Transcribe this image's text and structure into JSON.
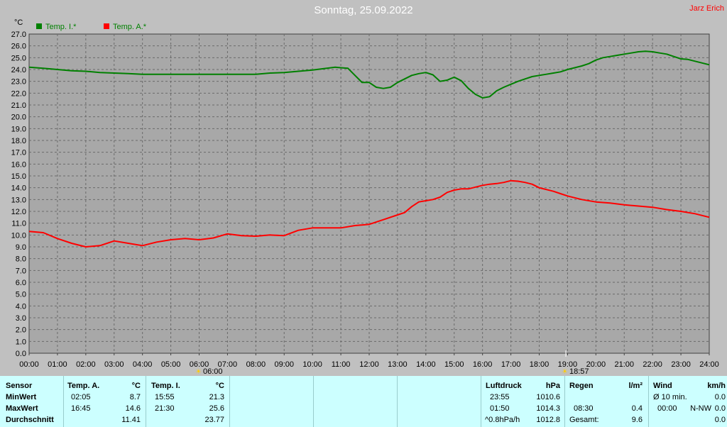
{
  "title": "Sonntag, 25.09.2022",
  "author": "Jarz Erich",
  "chart_data": {
    "type": "line",
    "ylabel": "°C",
    "ylim": [
      0,
      27
    ],
    "yticks": [
      "0.0",
      "1.0",
      "2.0",
      "3.0",
      "4.0",
      "5.0",
      "6.0",
      "7.0",
      "8.0",
      "9.0",
      "10.0",
      "11.0",
      "12.0",
      "13.0",
      "14.0",
      "15.0",
      "16.0",
      "17.0",
      "18.0",
      "19.0",
      "20.0",
      "21.0",
      "22.0",
      "23.0",
      "24.0",
      "25.0",
      "26.0",
      "27.0"
    ],
    "xlim": [
      0,
      24
    ],
    "xticks": [
      "00:00",
      "01:00",
      "02:00",
      "03:00",
      "04:00",
      "05:00",
      "06:00",
      "07:00",
      "08:00",
      "09:00",
      "10:00",
      "11:00",
      "12:00",
      "13:00",
      "14:00",
      "15:00",
      "16:00",
      "17:00",
      "18:00",
      "19:00",
      "20:00",
      "21:00",
      "22:00",
      "23:00",
      "24:00"
    ],
    "grid": true,
    "legend_position": "top-left",
    "sunrise_label": "06:00",
    "sunset_label": "18:57",
    "series": [
      {
        "name": "Temp. I.*",
        "color": "#008000",
        "x": [
          0,
          0.5,
          1,
          1.5,
          2,
          2.5,
          3,
          3.5,
          4,
          4.5,
          5,
          5.5,
          6,
          6.5,
          7,
          7.5,
          8,
          8.5,
          9,
          9.5,
          10,
          10.5,
          10.8,
          11,
          11.25,
          11.5,
          11.75,
          12,
          12.25,
          12.5,
          12.75,
          13,
          13.25,
          13.5,
          13.75,
          14,
          14.25,
          14.5,
          14.75,
          15,
          15.25,
          15.5,
          15.75,
          16,
          16.25,
          16.5,
          16.75,
          17,
          17.25,
          17.5,
          17.75,
          18,
          18.25,
          18.5,
          18.75,
          19,
          19.25,
          19.5,
          19.75,
          20,
          20.25,
          20.5,
          20.75,
          21,
          21.25,
          21.5,
          21.75,
          22,
          22.25,
          22.5,
          22.75,
          23,
          23.25,
          23.5,
          23.75,
          24
        ],
        "y": [
          24.2,
          24.1,
          24.0,
          23.9,
          23.85,
          23.75,
          23.7,
          23.65,
          23.6,
          23.6,
          23.6,
          23.6,
          23.6,
          23.6,
          23.6,
          23.6,
          23.6,
          23.7,
          23.75,
          23.85,
          23.95,
          24.1,
          24.2,
          24.15,
          24.1,
          23.5,
          22.9,
          22.9,
          22.5,
          22.4,
          22.5,
          22.9,
          23.2,
          23.5,
          23.65,
          23.75,
          23.55,
          23.0,
          23.1,
          23.35,
          23.05,
          22.4,
          21.9,
          21.6,
          21.7,
          22.2,
          22.5,
          22.75,
          23.0,
          23.2,
          23.4,
          23.5,
          23.6,
          23.7,
          23.8,
          24.0,
          24.15,
          24.3,
          24.5,
          24.8,
          25.0,
          25.1,
          25.2,
          25.3,
          25.4,
          25.5,
          25.55,
          25.5,
          25.4,
          25.3,
          25.1,
          24.9,
          24.85,
          24.7,
          24.55,
          24.4
        ]
      },
      {
        "name": "Temp. A.*",
        "color": "#ff0000",
        "x": [
          0,
          0.5,
          1,
          1.5,
          2,
          2.5,
          3,
          3.5,
          4,
          4.5,
          5,
          5.5,
          6,
          6.5,
          7,
          7.5,
          8,
          8.5,
          9,
          9.5,
          10,
          10.5,
          11,
          11.5,
          12,
          12.5,
          13,
          13.25,
          13.5,
          13.75,
          14,
          14.25,
          14.5,
          14.75,
          15,
          15.25,
          15.5,
          15.75,
          16,
          16.25,
          16.5,
          16.75,
          17,
          17.25,
          17.5,
          17.75,
          18,
          18.25,
          18.5,
          18.75,
          19,
          19.5,
          20,
          20.5,
          21,
          21.5,
          22,
          22.5,
          23,
          23.5,
          24
        ],
        "y": [
          10.3,
          10.2,
          9.7,
          9.3,
          9.0,
          9.1,
          9.5,
          9.3,
          9.1,
          9.4,
          9.6,
          9.7,
          9.6,
          9.75,
          10.1,
          9.95,
          9.9,
          10.0,
          9.95,
          10.4,
          10.6,
          10.6,
          10.6,
          10.8,
          10.9,
          11.3,
          11.7,
          11.9,
          12.4,
          12.8,
          12.9,
          13.0,
          13.2,
          13.6,
          13.8,
          13.9,
          13.9,
          14.05,
          14.2,
          14.3,
          14.35,
          14.45,
          14.6,
          14.55,
          14.45,
          14.3,
          14.0,
          13.85,
          13.7,
          13.5,
          13.3,
          13.0,
          12.8,
          12.7,
          12.55,
          12.45,
          12.35,
          12.15,
          12.0,
          11.8,
          11.5
        ]
      }
    ]
  },
  "table": {
    "sensor": {
      "header": "Sensor",
      "rows": [
        "MinWert",
        "MaxWert",
        "Durchschnitt"
      ]
    },
    "temp_a": {
      "header": "Temp. A.",
      "unit": "°C",
      "min_time": "02:05",
      "min": "8.7",
      "max_time": "16:45",
      "max": "14.6",
      "avg": "11.41"
    },
    "temp_i": {
      "header": "Temp. I.",
      "unit": "°C",
      "min_time": "15:55",
      "min": "21.3",
      "max_time": "21:30",
      "max": "25.6",
      "avg": "23.77"
    },
    "luftdruck": {
      "header": "Luftdruck",
      "unit": "hPa",
      "t1": "23:55",
      "v1": "1010.6",
      "t2": "01:50",
      "v2": "1014.3",
      "t3": "^0.8hPa/h",
      "v3": "1012.8"
    },
    "regen": {
      "header": "Regen",
      "unit": "l/m²",
      "t2": "08:30",
      "v2": "0.4",
      "t3": "Gesamt:",
      "v3": "9.6"
    },
    "wind": {
      "header": "Wind",
      "unit": "km/h",
      "t1": "Ø 10 min.",
      "v1": "0.0",
      "t2": "00:00",
      "d2": "N-NW",
      "v2": "0.0",
      "v3": "0.0"
    }
  }
}
